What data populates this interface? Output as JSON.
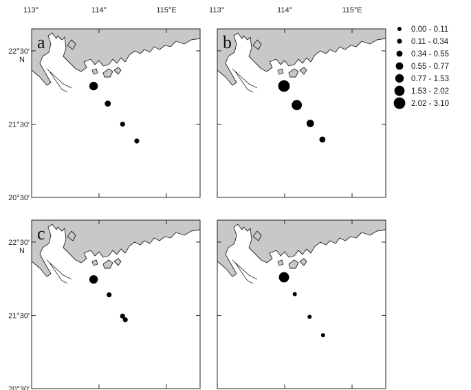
{
  "map": {
    "lon_ticks": [
      "113°",
      "114°",
      "115°E"
    ],
    "lat_ticks": [
      "22°30′",
      "21°30′",
      "20°30′"
    ],
    "lat_unit": "N",
    "lon_range": [
      113,
      115.5
    ],
    "lat_range": [
      20.5,
      22.8
    ],
    "colors": {
      "land": "#c8c8c8",
      "sea": "#ffffff",
      "marker": "#000000"
    }
  },
  "legend": {
    "classes": [
      {
        "range": "0.00 - 0.11",
        "level": 1
      },
      {
        "range": "0.11 - 0.34",
        "level": 2
      },
      {
        "range": "0.34 - 0.55",
        "level": 3
      },
      {
        "range": "0.55 - 0.77",
        "level": 4
      },
      {
        "range": "0.77 - 1.53",
        "level": 5
      },
      {
        "range": "1.53 - 2.02",
        "level": 6
      },
      {
        "range": "2.02 - 3.10",
        "level": 7
      }
    ]
  },
  "panels": [
    {
      "id": "a",
      "letter": "a",
      "stations": [
        {
          "lon": 113.92,
          "lat": 22.02,
          "level": 5
        },
        {
          "lon": 114.13,
          "lat": 21.78,
          "level": 3
        },
        {
          "lon": 114.35,
          "lat": 21.5,
          "level": 2
        },
        {
          "lon": 114.56,
          "lat": 21.27,
          "level": 2
        }
      ]
    },
    {
      "id": "b",
      "letter": "b",
      "stations": [
        {
          "lon": 113.99,
          "lat": 22.02,
          "level": 7
        },
        {
          "lon": 114.18,
          "lat": 21.76,
          "level": 6
        },
        {
          "lon": 114.38,
          "lat": 21.51,
          "level": 4
        },
        {
          "lon": 114.56,
          "lat": 21.29,
          "level": 3
        }
      ]
    },
    {
      "id": "c",
      "letter": "c",
      "stations": [
        {
          "lon": 113.92,
          "lat": 21.99,
          "level": 5
        },
        {
          "lon": 114.15,
          "lat": 21.78,
          "level": 2
        },
        {
          "lon": 114.35,
          "lat": 21.49,
          "level": 2
        },
        {
          "lon": 114.39,
          "lat": 21.44,
          "level": 2
        }
      ]
    },
    {
      "id": "d",
      "letter": "",
      "stations": [
        {
          "lon": 113.99,
          "lat": 22.02,
          "level": 6
        },
        {
          "lon": 114.15,
          "lat": 21.79,
          "level": 1
        },
        {
          "lon": 114.37,
          "lat": 21.48,
          "level": 1
        },
        {
          "lon": 114.57,
          "lat": 21.23,
          "level": 1
        }
      ]
    }
  ]
}
